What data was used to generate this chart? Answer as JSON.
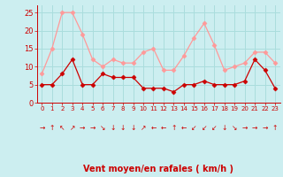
{
  "hours": [
    0,
    1,
    2,
    3,
    4,
    5,
    6,
    7,
    8,
    9,
    10,
    11,
    12,
    13,
    14,
    15,
    16,
    17,
    18,
    19,
    20,
    21,
    22,
    23
  ],
  "wind_avg": [
    5,
    5,
    8,
    12,
    5,
    5,
    8,
    7,
    7,
    7,
    4,
    4,
    4,
    3,
    5,
    5,
    6,
    5,
    5,
    5,
    6,
    12,
    9,
    4
  ],
  "wind_gust": [
    8,
    15,
    25,
    25,
    19,
    12,
    10,
    12,
    11,
    11,
    14,
    15,
    9,
    9,
    13,
    18,
    22,
    16,
    9,
    10,
    11,
    14,
    14,
    11
  ],
  "bg_color": "#cceef0",
  "grid_color": "#aadddd",
  "line_avg_color": "#cc0000",
  "line_gust_color": "#ff9999",
  "xlabel": "Vent moyen/en rafales ( km/h )",
  "xlabel_color": "#cc0000",
  "tick_color": "#cc0000",
  "ylim": [
    0,
    27
  ],
  "yticks": [
    0,
    5,
    10,
    15,
    20,
    25
  ],
  "arrow_symbols": [
    "→",
    "↑",
    "↖",
    "↗",
    "→",
    "→",
    "↘",
    "↓",
    "↓",
    "↓",
    "↗",
    "←",
    "←",
    "↑",
    "←",
    "↙",
    "↙",
    "↙",
    "↓",
    "↘",
    "→",
    "→",
    "→",
    "↑"
  ]
}
